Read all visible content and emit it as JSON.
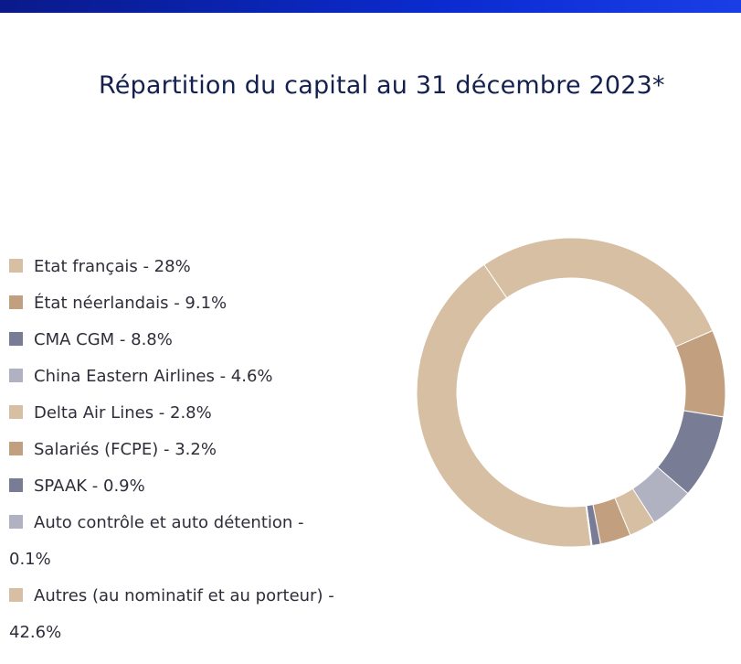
{
  "chart_data": {
    "type": "pie",
    "title": "Répartition du capital au 31 décembre 2023*",
    "legend_position": "left",
    "slices": [
      {
        "name": "Autres (au nominatif et au porteur)",
        "value": 42.6,
        "label": "Autres (au nominatif et au porteur) - 42.6%",
        "color": "#d6bfa2"
      },
      {
        "name": "Etat français",
        "value": 28,
        "label": "Etat français - 28%",
        "color": "#d6bfa2"
      },
      {
        "name": "État néerlandais",
        "value": 9.1,
        "label": "État néerlandais - 9.1%",
        "color": "#c2a07f"
      },
      {
        "name": "CMA CGM",
        "value": 8.8,
        "label": "CMA CGM - 8.8%",
        "color": "#787c95"
      },
      {
        "name": "China Eastern Airlines",
        "value": 4.6,
        "label": "China Eastern Airlines - 4.6%",
        "color": "#b0b2c2"
      },
      {
        "name": "Delta Air Lines",
        "value": 2.8,
        "label": "Delta Air Lines - 2.8%",
        "color": "#d6bfa2"
      },
      {
        "name": "Salariés (FCPE)",
        "value": 3.2,
        "label": "Salariés (FCPE) - 3.2%",
        "color": "#c2a07f"
      },
      {
        "name": "SPAAK",
        "value": 0.9,
        "label": "SPAAK - 0.9%",
        "color": "#787c95"
      },
      {
        "name": "Auto contrôle et auto détention",
        "value": 0.1,
        "label": "Auto contrôle et auto détention - 0.1%",
        "color": "#b0b2c2"
      }
    ],
    "legend": [
      {
        "text": "Etat français - 28%",
        "color": "#d6bfa2"
      },
      {
        "text": "État néerlandais - 9.1%",
        "color": "#c2a07f"
      },
      {
        "text": "CMA CGM - 8.8%",
        "color": "#787c95"
      },
      {
        "text": "China Eastern Airlines - 4.6%",
        "color": "#b0b2c2"
      },
      {
        "text": "Delta Air Lines - 2.8%",
        "color": "#d6bfa2"
      },
      {
        "text": "Salariés (FCPE) - 3.2%",
        "color": "#c2a07f"
      },
      {
        "text": "SPAAK - 0.9%",
        "color": "#787c95"
      },
      {
        "text": "Auto contrôle et auto détention - 0.1%",
        "color": "#b0b2c2"
      },
      {
        "text": "Autres (au nominatif et au porteur) - 42.6%",
        "color": "#d6bfa2"
      }
    ]
  },
  "colors": {
    "top_bar": "#0b2bd0",
    "title": "#14214f"
  }
}
